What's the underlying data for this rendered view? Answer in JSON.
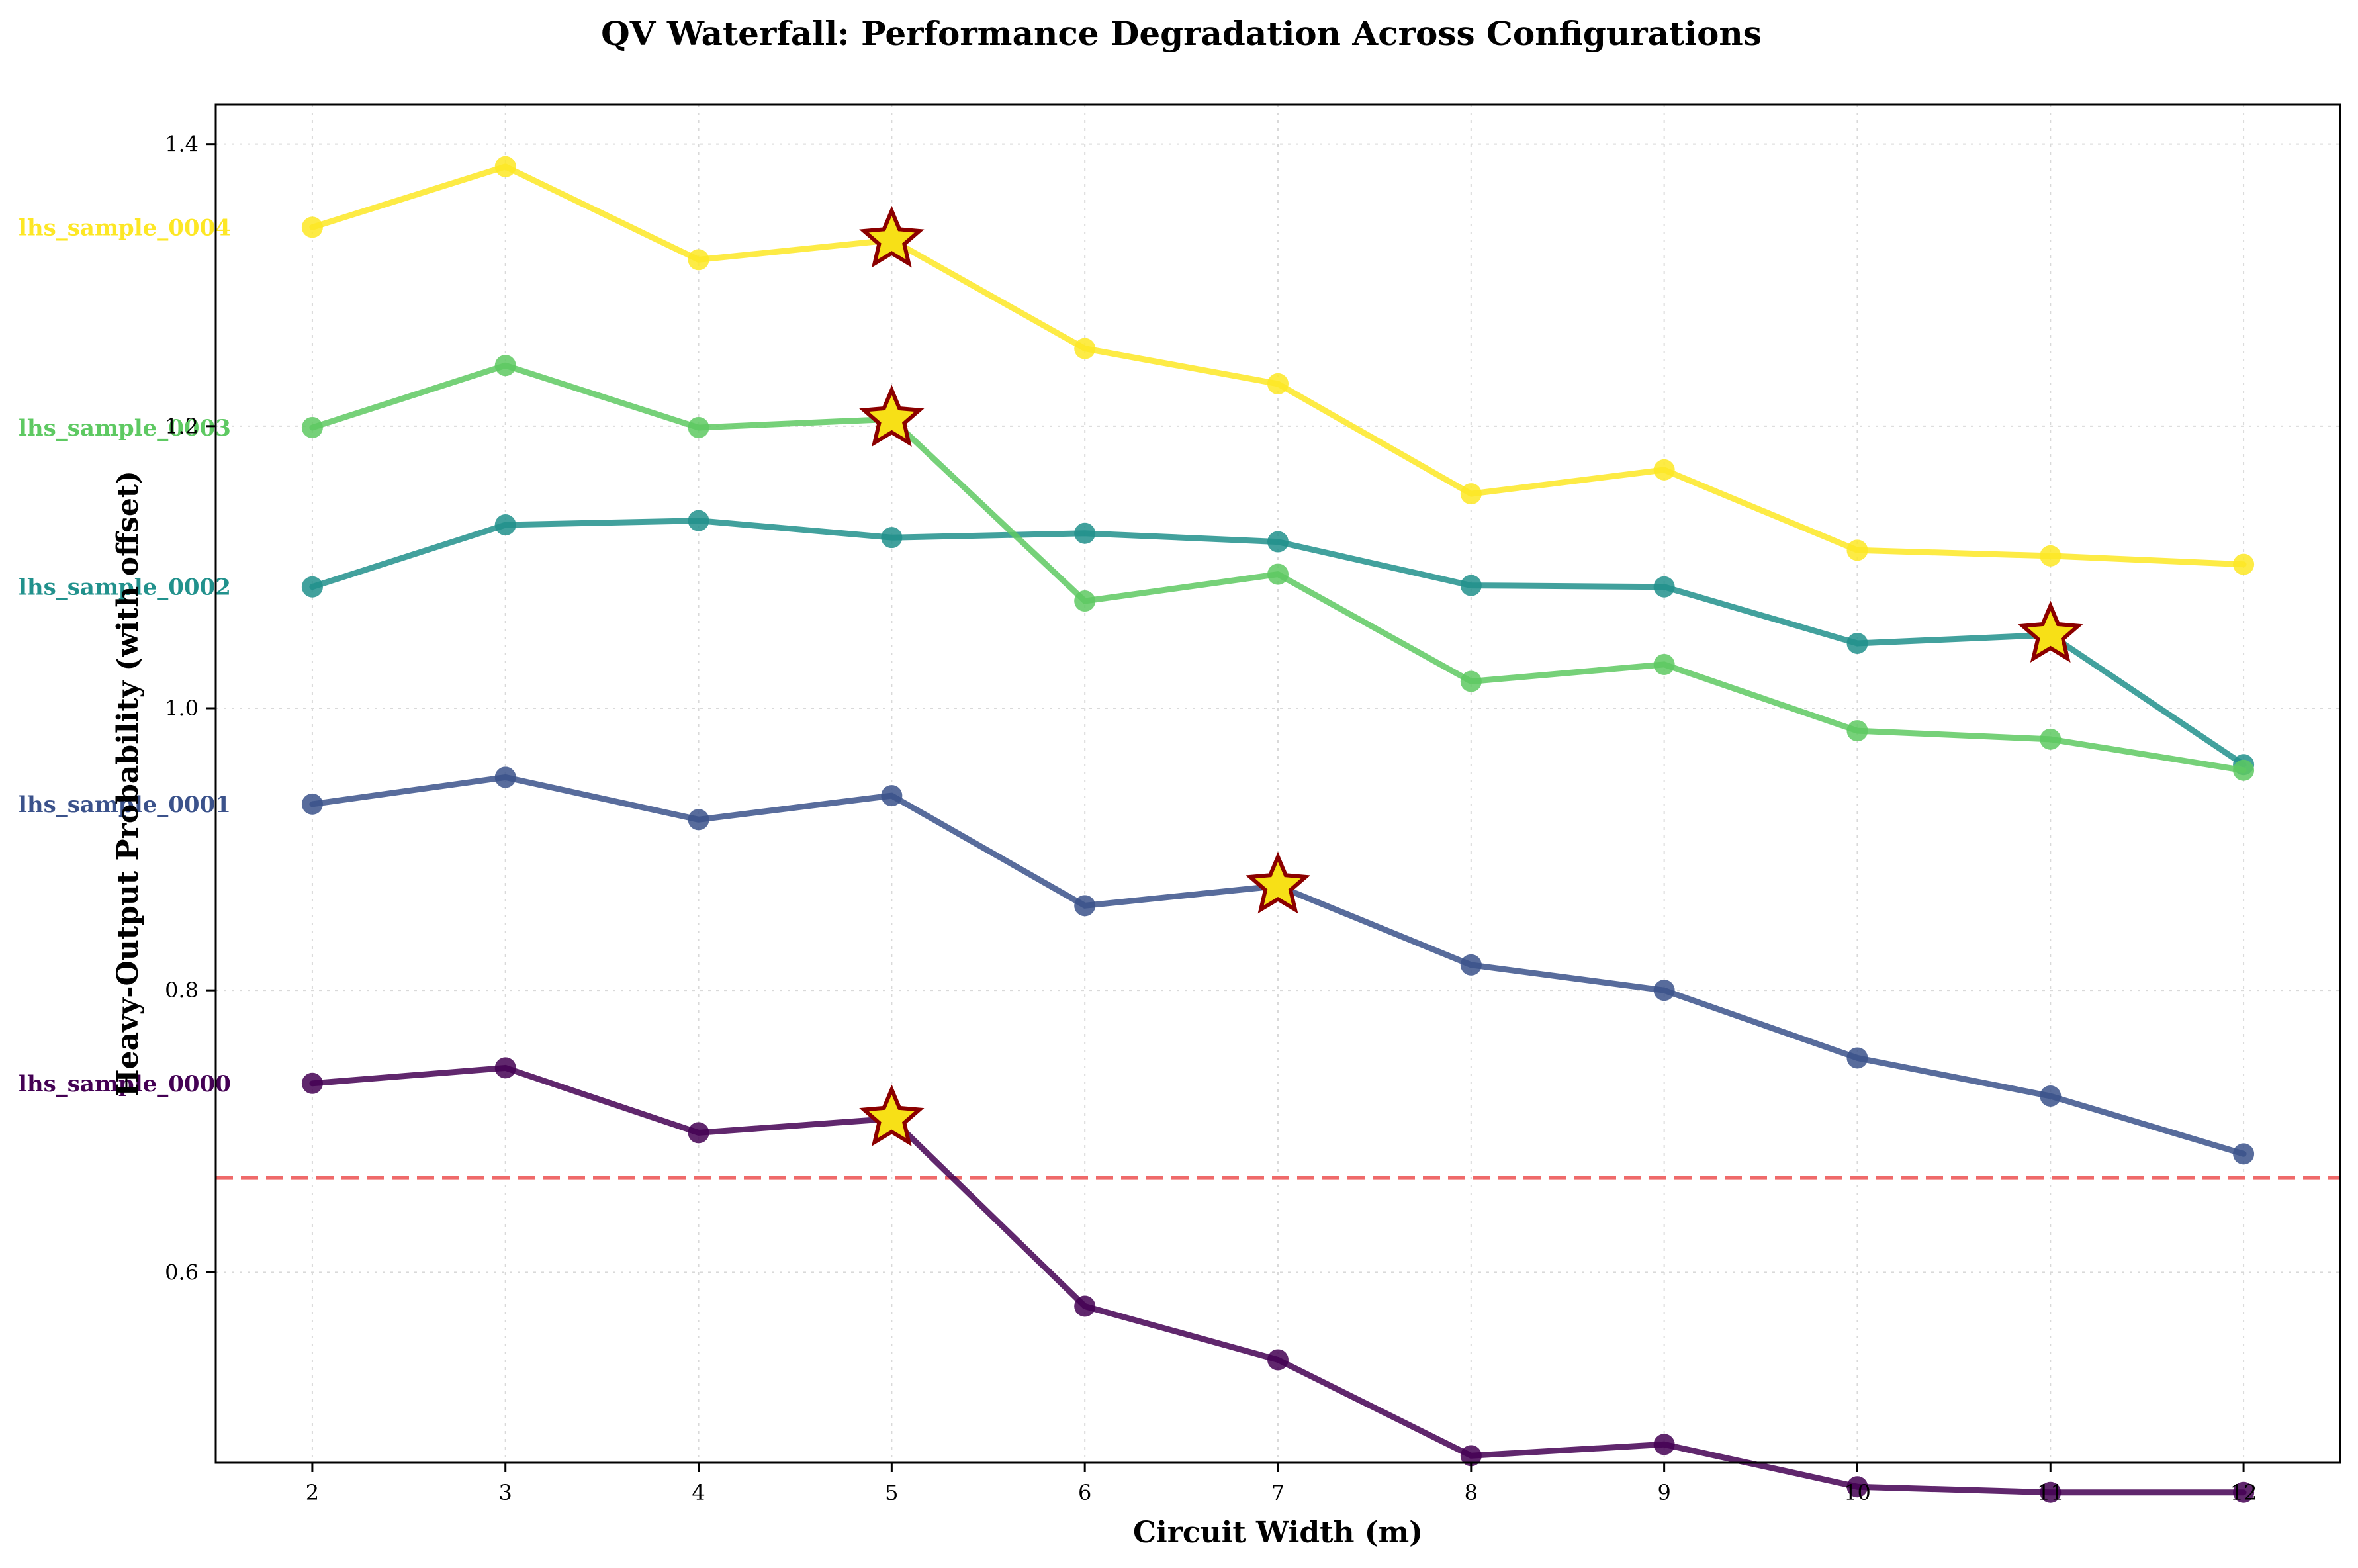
{
  "chart_data": {
    "type": "line",
    "title": "QV Waterfall: Performance Degradation Across Configurations",
    "xlabel": "Circuit Width (m)",
    "ylabel": "Heavy-Output Probability (with offset)",
    "x": [
      2,
      3,
      4,
      5,
      6,
      7,
      8,
      9,
      10,
      11,
      12
    ],
    "xticks": [
      "2",
      "3",
      "4",
      "5",
      "6",
      "7",
      "8",
      "9",
      "10",
      "11",
      "12"
    ],
    "yticks": [
      "0.6",
      "0.8",
      "1.0",
      "1.2",
      "1.4"
    ],
    "xlim": [
      1.5,
      12.5
    ],
    "ylim": [
      0.465,
      1.428
    ],
    "grid": true,
    "threshold": {
      "value": 0.667,
      "color": "#ef6a6a",
      "style": "dashed"
    },
    "marker_highlight": {
      "fill": "#f7e017",
      "stroke": "#8b0000"
    },
    "series": [
      {
        "name": "lhs_sample_0000",
        "color": "#440154",
        "values": [
          0.734,
          0.745,
          0.699,
          0.709,
          0.576,
          0.538,
          0.47,
          0.478,
          0.448,
          0.444,
          0.444
        ],
        "star_x": 5
      },
      {
        "name": "lhs_sample_0001",
        "color": "#3b528b",
        "values": [
          0.932,
          0.951,
          0.921,
          0.938,
          0.86,
          0.874,
          0.818,
          0.8,
          0.752,
          0.725,
          0.684
        ],
        "star_x": 7
      },
      {
        "name": "lhs_sample_0002",
        "color": "#21918c",
        "values": [
          1.086,
          1.13,
          1.133,
          1.121,
          1.124,
          1.118,
          1.087,
          1.086,
          1.046,
          1.052,
          0.96
        ],
        "star_x": 11
      },
      {
        "name": "lhs_sample_0003",
        "color": "#5ec962",
        "values": [
          1.199,
          1.243,
          1.199,
          1.205,
          1.076,
          1.095,
          1.019,
          1.031,
          0.984,
          0.978,
          0.956
        ],
        "star_x": 5
      },
      {
        "name": "lhs_sample_0004",
        "color": "#fde725",
        "values": [
          1.341,
          1.384,
          1.318,
          1.332,
          1.255,
          1.23,
          1.152,
          1.169,
          1.112,
          1.108,
          1.102
        ],
        "star_x": 5
      }
    ]
  }
}
